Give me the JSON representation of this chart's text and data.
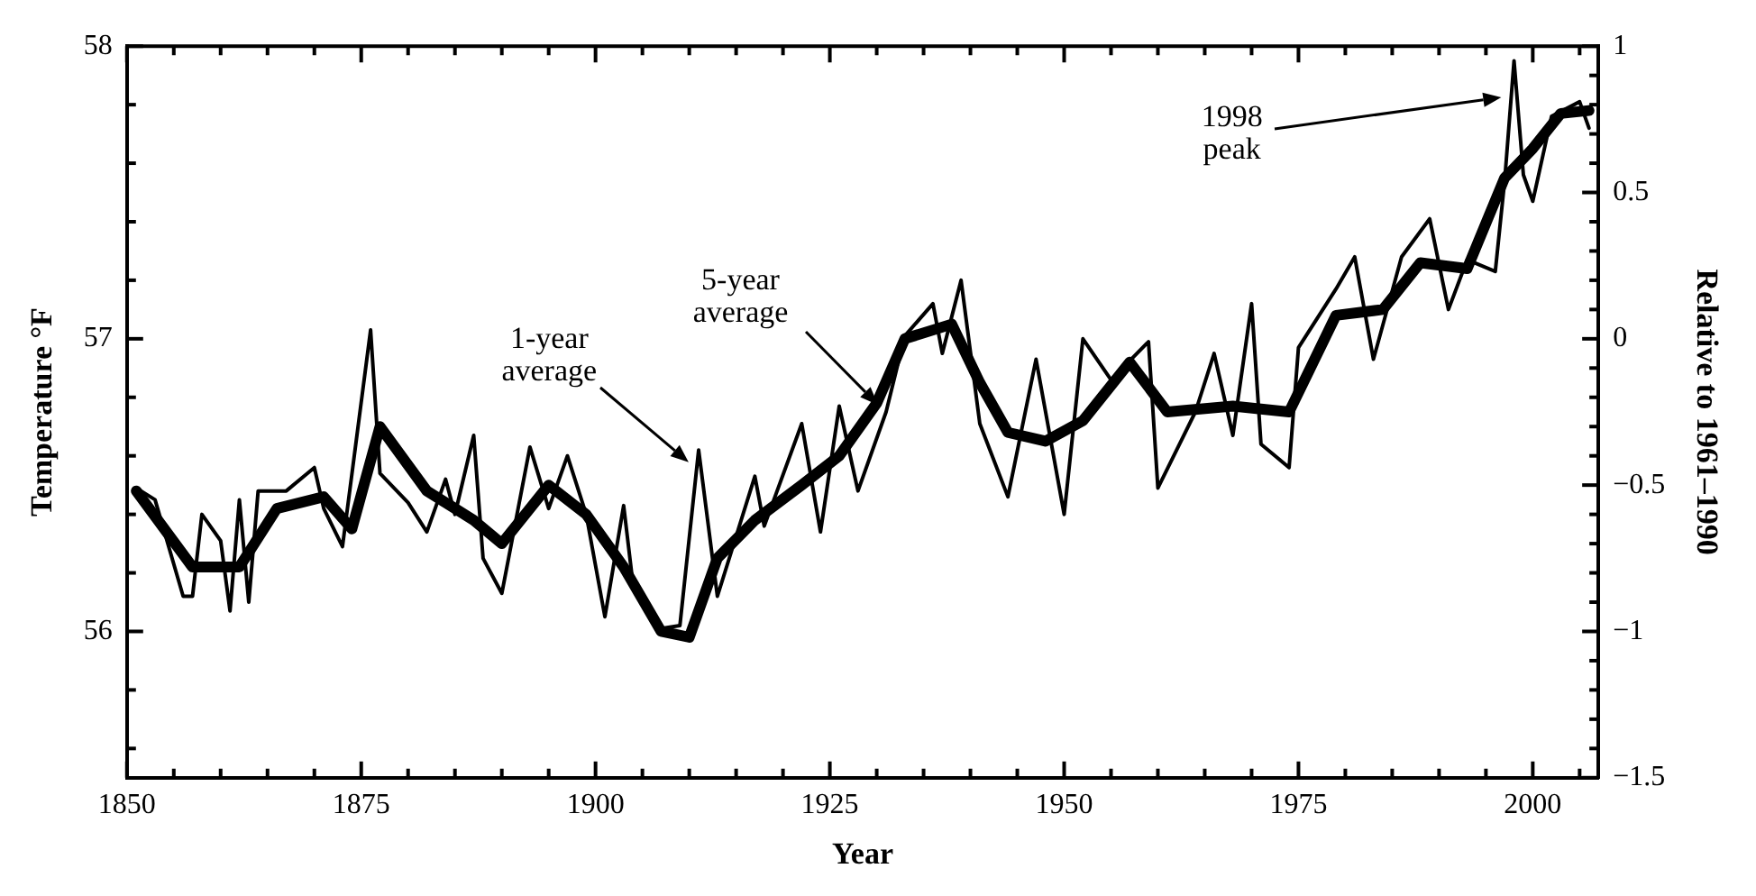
{
  "chart_data": {
    "type": "line",
    "xlabel": "Year",
    "ylabel": "Temperature °F",
    "y2label": "Relative to 1961–1990",
    "annotations": [
      "1-year average",
      "5-year average",
      "1998 peak"
    ],
    "series": [
      {
        "color": "#000000",
        "x": [
          1851,
          1853,
          1856,
          1857,
          1858,
          1860,
          1861,
          1862,
          1863,
          1864,
          1867,
          1870,
          1871,
          1873,
          1876,
          1877,
          1880,
          1882,
          1884,
          1885,
          1887,
          1888,
          1890,
          1893,
          1895,
          1897,
          1899,
          1901,
          1903,
          1904,
          1907,
          1909,
          1911,
          1913,
          1917,
          1918,
          1922,
          1924,
          1926,
          1928,
          1931,
          1933,
          1936,
          1937,
          1939,
          1941,
          1944,
          1947,
          1950,
          1952,
          1955,
          1959,
          1960,
          1964,
          1966,
          1968,
          1970,
          1971,
          1974,
          1975,
          1979,
          1981,
          1983,
          1986,
          1989,
          1991,
          1993,
          1996,
          1997,
          1998,
          1999,
          2000,
          2002,
          2005,
          2006
        ],
        "values": [
          56.49,
          56.45,
          56.12,
          56.12,
          56.4,
          56.31,
          56.07,
          56.45,
          56.1,
          56.48,
          56.48,
          56.56,
          56.42,
          56.29,
          57.03,
          56.54,
          56.44,
          56.34,
          56.52,
          56.4,
          56.67,
          56.25,
          56.13,
          56.63,
          56.42,
          56.6,
          56.4,
          56.05,
          56.43,
          56.16,
          56.01,
          56.02,
          56.62,
          56.12,
          56.53,
          56.36,
          56.71,
          56.34,
          56.77,
          56.48,
          56.75,
          57.01,
          57.12,
          56.95,
          57.2,
          56.71,
          56.46,
          56.93,
          56.4,
          57,
          56.86,
          56.99,
          56.49,
          56.75,
          56.95,
          56.67,
          57.12,
          56.64,
          56.56,
          56.97,
          57.17,
          57.28,
          56.93,
          57.28,
          57.41,
          57.1,
          57.27,
          57.23,
          57.54,
          57.95,
          57.56,
          57.47,
          57.76,
          57.81,
          57.72
        ]
      },
      {
        "color": "#000000",
        "x": [
          1851,
          1857,
          1862,
          1866,
          1871,
          1874,
          1877,
          1882,
          1887,
          1890,
          1895,
          1899,
          1903,
          1907,
          1910,
          1913,
          1917,
          1922,
          1926,
          1930,
          1933,
          1938,
          1941,
          1944,
          1948,
          1952,
          1957,
          1961,
          1968,
          1974,
          1979,
          1984,
          1988,
          1993,
          1997,
          2000,
          2003,
          2006
        ],
        "values": [
          56.48,
          56.22,
          56.22,
          56.42,
          56.46,
          56.35,
          56.7,
          56.48,
          56.38,
          56.3,
          56.5,
          56.4,
          56.22,
          56,
          55.98,
          56.25,
          56.38,
          56.5,
          56.6,
          56.78,
          57,
          57.05,
          56.85,
          56.68,
          56.65,
          56.72,
          56.92,
          56.75,
          56.77,
          56.75,
          57.08,
          57.1,
          57.26,
          57.24,
          57.55,
          57.65,
          57.77,
          57.78
        ]
      }
    ],
    "xlim": [
      1850,
      2007
    ],
    "xticks": [
      1850,
      {
        "value": 1855,
        "label": null
      },
      {
        "value": 1860,
        "label": null
      },
      {
        "value": 1865,
        "label": null
      },
      {
        "value": 1870,
        "label": null
      },
      1875,
      {
        "value": 1880,
        "label": null
      },
      {
        "value": 1885,
        "label": null
      },
      {
        "value": 1890,
        "label": null
      },
      {
        "value": 1895,
        "label": null
      },
      1900,
      {
        "value": 1905,
        "label": null
      },
      {
        "value": 1910,
        "label": null
      },
      {
        "value": 1915,
        "label": null
      },
      {
        "value": 1920,
        "label": null
      },
      1925,
      {
        "value": 1930,
        "label": null
      },
      {
        "value": 1935,
        "label": null
      },
      {
        "value": 1940,
        "label": null
      },
      {
        "value": 1945,
        "label": null
      },
      1950,
      {
        "value": 1955,
        "label": null
      },
      {
        "value": 1960,
        "label": null
      },
      {
        "value": 1965,
        "label": null
      },
      {
        "value": 1970,
        "label": null
      },
      1975,
      {
        "value": 1980,
        "label": null
      },
      {
        "value": 1985,
        "label": null
      },
      {
        "value": 1990,
        "label": null
      },
      {
        "value": 1995,
        "label": null
      },
      2000,
      {
        "value": 2005,
        "label": null
      }
    ],
    "ylim": [
      55.5,
      58
    ],
    "yticks": [
      {
        "value": 55.6,
        "label": null
      },
      {
        "value": 55.8,
        "label": null
      },
      56,
      {
        "value": 56.2,
        "label": null
      },
      {
        "value": 56.4,
        "label": null
      },
      {
        "value": 56.6,
        "label": null
      },
      {
        "value": 56.8,
        "label": null
      },
      57,
      {
        "value": 57.2,
        "label": null
      },
      {
        "value": 57.4,
        "label": null
      },
      {
        "value": 57.6,
        "label": null
      },
      {
        "value": 57.8,
        "label": null
      },
      58
    ],
    "y2lim": [
      -1.5,
      1
    ],
    "y2ticks": [
      {
        "value": -1.5,
        "label": "−1.5"
      },
      {
        "value": -1.4,
        "label": null
      },
      {
        "value": -1.3,
        "label": null
      },
      {
        "value": -1.2,
        "label": null
      },
      {
        "value": -1.1,
        "label": null
      },
      {
        "value": -1,
        "label": "−1"
      },
      {
        "value": -0.9,
        "label": null
      },
      {
        "value": -0.8,
        "label": null
      },
      {
        "value": -0.7,
        "label": null
      },
      {
        "value": -0.6,
        "label": null
      },
      {
        "value": -0.5,
        "label": "−0.5"
      },
      {
        "value": -0.4,
        "label": null
      },
      {
        "value": -0.3,
        "label": null
      },
      {
        "value": -0.2,
        "label": null
      },
      {
        "value": -0.1,
        "label": null
      },
      0,
      {
        "value": 0.1,
        "label": null
      },
      {
        "value": 0.2,
        "label": null
      },
      {
        "value": 0.3,
        "label": null
      },
      {
        "value": 0.4,
        "label": null
      },
      0.5,
      {
        "value": 0.6,
        "label": null
      },
      {
        "value": 0.7,
        "label": null
      },
      {
        "value": 0.8,
        "label": null
      },
      {
        "value": 0.9,
        "label": null
      },
      1
    ],
    "grid": false,
    "legend": false,
    "marker": "none",
    "line_style": "solid"
  }
}
